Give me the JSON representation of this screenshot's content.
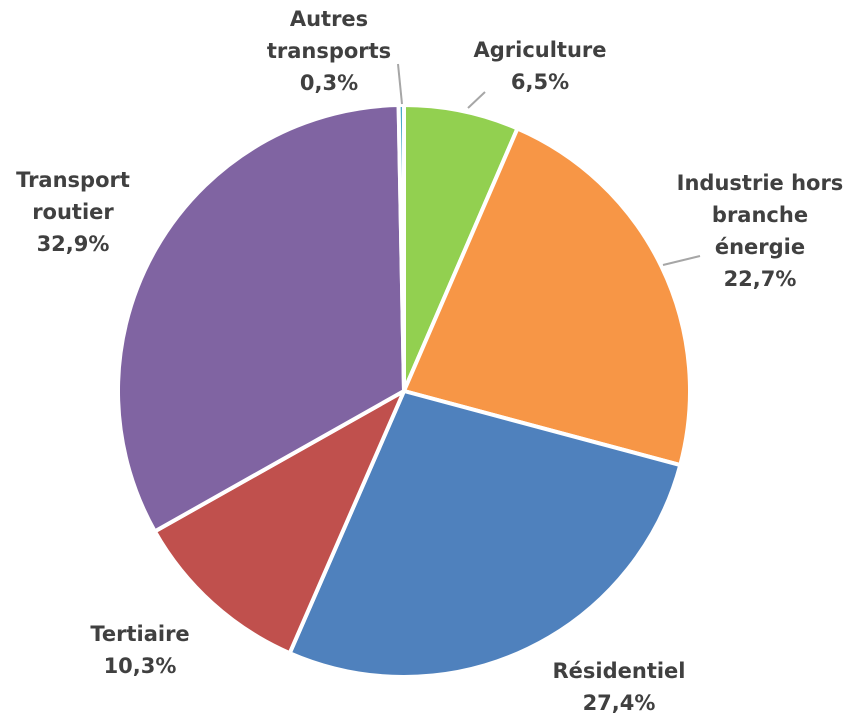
{
  "chart_data": {
    "type": "pie",
    "title": "",
    "slices": [
      {
        "name": "Agriculture",
        "label_lines": [
          "Agriculture"
        ],
        "value": 6.5,
        "value_label": "6,5%",
        "color": "#92d050"
      },
      {
        "name": "Industrie hors branche énergie",
        "label_lines": [
          "Industrie hors",
          "branche",
          "énergie"
        ],
        "value": 22.7,
        "value_label": "22,7%",
        "color": "#f79646"
      },
      {
        "name": "Résidentiel",
        "label_lines": [
          "Résidentiel"
        ],
        "value": 27.4,
        "value_label": "27,4%",
        "color": "#4f81bd"
      },
      {
        "name": "Tertiaire",
        "label_lines": [
          "Tertiaire"
        ],
        "value": 10.3,
        "value_label": "10,3%",
        "color": "#c0504d"
      },
      {
        "name": "Transport routier",
        "label_lines": [
          "Transport",
          "routier"
        ],
        "value": 32.9,
        "value_label": "32,9%",
        "color": "#8064a2"
      },
      {
        "name": "Autres transports",
        "label_lines": [
          "Autres",
          "transports"
        ],
        "value": 0.3,
        "value_label": "0,3%",
        "color": "#4bacc6"
      }
    ],
    "start_angle_deg": 0,
    "direction": "clockwise",
    "legend": "none"
  }
}
